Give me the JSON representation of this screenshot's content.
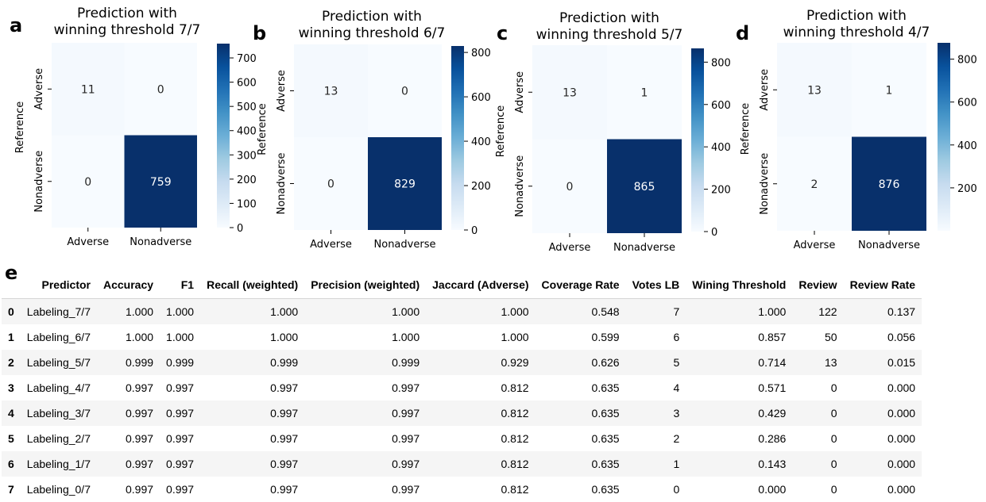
{
  "chart_data": [
    {
      "type": "heatmap",
      "letter": "a",
      "title": "Prediction with\nwinning threshold 7/7",
      "xlabel": "",
      "ylabel": "Reference",
      "x_categories": [
        "Adverse",
        "Nonadverse"
      ],
      "y_categories": [
        "Adverse",
        "Nonadverse"
      ],
      "values": [
        [
          11,
          0
        ],
        [
          0,
          759
        ]
      ],
      "colormap": "Blues",
      "colorbar_ticks": [
        0,
        100,
        200,
        300,
        400,
        500,
        600,
        700
      ],
      "colorbar_range": [
        0,
        759
      ]
    },
    {
      "type": "heatmap",
      "letter": "b",
      "title": "Prediction with\nwinning threshold 6/7",
      "xlabel": "",
      "ylabel": "Reference",
      "x_categories": [
        "Adverse",
        "Nonadverse"
      ],
      "y_categories": [
        "Adverse",
        "Nonadverse"
      ],
      "values": [
        [
          13,
          0
        ],
        [
          0,
          829
        ]
      ],
      "colormap": "Blues",
      "colorbar_ticks": [
        0,
        200,
        400,
        600,
        800
      ],
      "colorbar_range": [
        0,
        829
      ]
    },
    {
      "type": "heatmap",
      "letter": "c",
      "title": "Prediction with\nwinning threshold 5/7",
      "xlabel": "",
      "ylabel": "Reference",
      "x_categories": [
        "Adverse",
        "Nonadverse"
      ],
      "y_categories": [
        "Adverse",
        "Nonadverse"
      ],
      "values": [
        [
          13,
          1
        ],
        [
          0,
          865
        ]
      ],
      "colormap": "Blues",
      "colorbar_ticks": [
        0,
        200,
        400,
        600,
        800
      ],
      "colorbar_range": [
        0,
        865
      ]
    },
    {
      "type": "heatmap",
      "letter": "d",
      "title": "Prediction with\nwinning threshold 4/7",
      "xlabel": "",
      "ylabel": "Reference",
      "x_categories": [
        "Adverse",
        "Nonadverse"
      ],
      "y_categories": [
        "Adverse",
        "Nonadverse"
      ],
      "values": [
        [
          13,
          1
        ],
        [
          2,
          876
        ]
      ],
      "colormap": "Blues",
      "colorbar_ticks": [
        200,
        400,
        600,
        800
      ],
      "colorbar_range": [
        0,
        876
      ]
    }
  ],
  "colors": {
    "low": "#f7fbff",
    "high": "#08306b",
    "light_text": "#262626",
    "dark_text": "#ffffff"
  },
  "table": {
    "letter": "e",
    "headers": [
      "",
      "Predictor",
      "Accuracy",
      "F1",
      "Recall (weighted)",
      "Precision (weighted)",
      "Jaccard (Adverse)",
      "Coverage Rate",
      "Votes LB",
      "Wining Threshold",
      "Review",
      "Review Rate"
    ],
    "rows": [
      [
        "0",
        "Labeling_7/7",
        "1.000",
        "1.000",
        "1.000",
        "1.000",
        "1.000",
        "0.548",
        "7",
        "1.000",
        "122",
        "0.137"
      ],
      [
        "1",
        "Labeling_6/7",
        "1.000",
        "1.000",
        "1.000",
        "1.000",
        "1.000",
        "0.599",
        "6",
        "0.857",
        "50",
        "0.056"
      ],
      [
        "2",
        "Labeling_5/7",
        "0.999",
        "0.999",
        "0.999",
        "0.999",
        "0.929",
        "0.626",
        "5",
        "0.714",
        "13",
        "0.015"
      ],
      [
        "3",
        "Labeling_4/7",
        "0.997",
        "0.997",
        "0.997",
        "0.997",
        "0.812",
        "0.635",
        "4",
        "0.571",
        "0",
        "0.000"
      ],
      [
        "4",
        "Labeling_3/7",
        "0.997",
        "0.997",
        "0.997",
        "0.997",
        "0.812",
        "0.635",
        "3",
        "0.429",
        "0",
        "0.000"
      ],
      [
        "5",
        "Labeling_2/7",
        "0.997",
        "0.997",
        "0.997",
        "0.997",
        "0.812",
        "0.635",
        "2",
        "0.286",
        "0",
        "0.000"
      ],
      [
        "6",
        "Labeling_1/7",
        "0.997",
        "0.997",
        "0.997",
        "0.997",
        "0.812",
        "0.635",
        "1",
        "0.143",
        "0",
        "0.000"
      ],
      [
        "7",
        "Labeling_0/7",
        "0.997",
        "0.997",
        "0.997",
        "0.997",
        "0.812",
        "0.635",
        "0",
        "0.000",
        "0",
        "0.000"
      ]
    ]
  }
}
